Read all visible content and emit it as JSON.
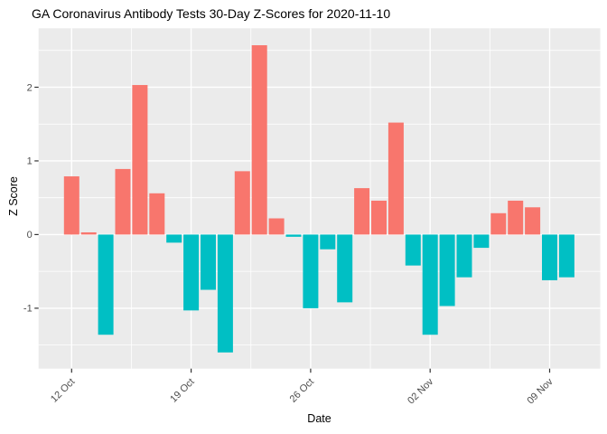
{
  "chart_data": {
    "type": "bar",
    "title": "GA Coronavirus Antibody Tests 30-Day Z-Scores for 2020-11-10",
    "xlabel": "Date",
    "ylabel": "Z Score",
    "dates": [
      "2020-10-12",
      "2020-10-13",
      "2020-10-14",
      "2020-10-15",
      "2020-10-16",
      "2020-10-17",
      "2020-10-18",
      "2020-10-19",
      "2020-10-20",
      "2020-10-21",
      "2020-10-22",
      "2020-10-23",
      "2020-10-24",
      "2020-10-25",
      "2020-10-26",
      "2020-10-27",
      "2020-10-28",
      "2020-10-29",
      "2020-10-30",
      "2020-10-31",
      "2020-11-01",
      "2020-11-02",
      "2020-11-03",
      "2020-11-04",
      "2020-11-05",
      "2020-11-06",
      "2020-11-07",
      "2020-11-08",
      "2020-11-09",
      "2020-11-10"
    ],
    "values": [
      0.79,
      0.03,
      -1.36,
      0.89,
      2.03,
      0.56,
      -0.11,
      -1.03,
      -0.75,
      -1.6,
      0.86,
      2.57,
      0.22,
      -0.03,
      -1.0,
      -0.2,
      -0.92,
      0.63,
      0.46,
      1.52,
      -0.42,
      -1.36,
      -0.97,
      -0.58,
      -0.18,
      0.29,
      0.46,
      0.37,
      -0.62,
      -0.58
    ],
    "x_tick_labels": [
      "12 Oct",
      "19 Oct",
      "26 Oct",
      "02 Nov",
      "09 Nov"
    ],
    "x_tick_day_index": [
      0,
      7,
      14,
      21,
      28
    ],
    "x_minor_day_index": [
      3.5,
      10.5,
      17.5,
      24.5
    ],
    "y_tick_labels": [
      "-1",
      "0",
      "1",
      "2"
    ],
    "y_tick_values": [
      -1,
      0,
      1,
      2
    ],
    "y_minor_values": [
      -1.5,
      -0.5,
      0.5,
      1.5,
      2.5
    ],
    "ylim": [
      -1.82,
      2.8
    ],
    "grid": "major+minor, white on grey panel",
    "legend": "none",
    "colors": {
      "positive_bar": "#F8766D",
      "negative_bar": "#00BFC4",
      "panel_background": "#EBEBEB",
      "gridline": "#FFFFFF",
      "tick_label": "#4D4D4D",
      "tick_mark": "#333333",
      "axis_title": "#000000",
      "title": "#000000"
    }
  }
}
